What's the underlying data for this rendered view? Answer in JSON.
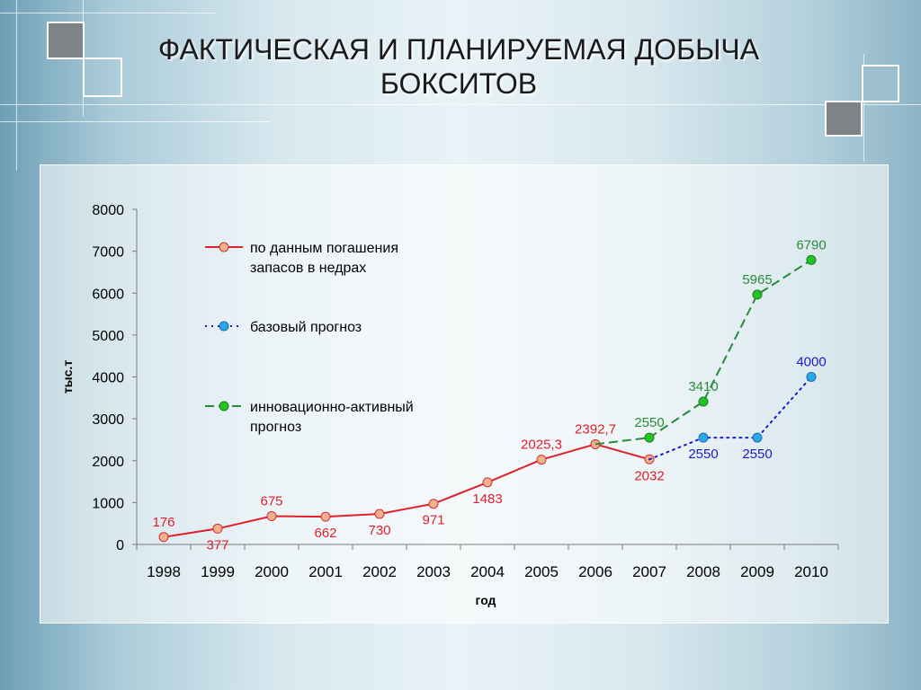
{
  "slide": {
    "title_line1": "ФАКТИЧЕСКАЯ И ПЛАНИРУЕМАЯ ДОБЫЧА",
    "title_line2": "БОКСИТОВ"
  },
  "chart_data": {
    "type": "line",
    "title": "",
    "xlabel": "год",
    "ylabel": "тыс.т",
    "ylim": [
      0,
      8000
    ],
    "yticks": [
      "0",
      "1000",
      "2000",
      "3000",
      "4000",
      "5000",
      "6000",
      "7000",
      "8000"
    ],
    "categories": [
      "1998",
      "1999",
      "2000",
      "2001",
      "2002",
      "2003",
      "2004",
      "2005",
      "2006",
      "2007",
      "2008",
      "2009",
      "2010"
    ],
    "legend_position": "top-left",
    "series": [
      {
        "name": "по данным погашения запасов в недрах",
        "legend_lines": [
          "по данным погашения",
          "запасов в недрах"
        ],
        "color": "#e0202a",
        "marker": "#f5b08a",
        "style": "solid",
        "values": [
          176,
          377,
          675,
          662,
          730,
          971,
          1483,
          2025.3,
          2392.7,
          2032,
          null,
          null,
          null
        ],
        "labels": [
          "176",
          "377",
          "675",
          "662",
          "730",
          "971",
          "1483",
          "2025,3",
          "2392,7",
          "2032",
          "",
          "",
          ""
        ]
      },
      {
        "name": "базовый прогноз",
        "legend_lines": [
          "базовый прогноз"
        ],
        "color": "#1a1acc",
        "marker": "#2aa8e8",
        "style": "dotted",
        "values": [
          null,
          null,
          null,
          null,
          null,
          null,
          null,
          null,
          null,
          2032,
          2550,
          2550,
          4000
        ],
        "labels": [
          "",
          "",
          "",
          "",
          "",
          "",
          "",
          "",
          "",
          "",
          "2550",
          "2550",
          "4000"
        ]
      },
      {
        "name": "инновационно-активный прогноз",
        "legend_lines": [
          "инновационно-активный",
          "прогноз"
        ],
        "color": "#2a8a3a",
        "marker": "#22c422",
        "style": "dashed",
        "values": [
          null,
          null,
          null,
          null,
          null,
          null,
          null,
          null,
          2392.7,
          2550,
          3410,
          5965,
          6790
        ],
        "labels": [
          "",
          "",
          "",
          "",
          "",
          "",
          "",
          "",
          "",
          "2550",
          "3410",
          "5965",
          "6790"
        ]
      }
    ]
  }
}
